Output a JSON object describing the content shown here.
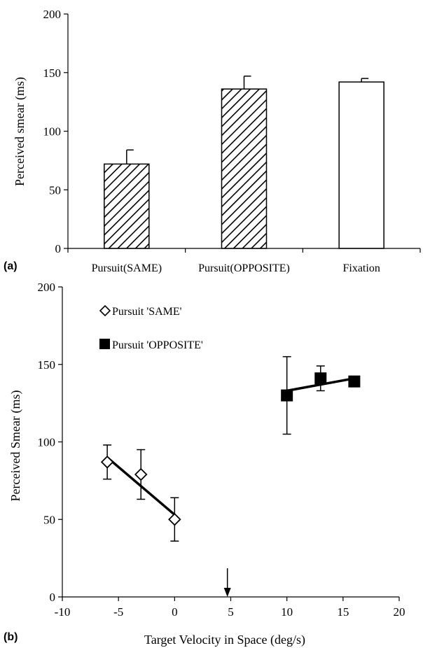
{
  "chart_data": [
    {
      "type": "bar",
      "panel_label": "(a)",
      "ylabel": "Perceived smear (ms)",
      "categories": [
        "Pursuit(SAME)",
        "Pursuit(OPPOSITE)",
        "Fixation"
      ],
      "values": [
        72,
        136,
        142
      ],
      "errors": [
        12,
        11,
        3
      ],
      "patterns": [
        "hatched",
        "hatched",
        "open"
      ],
      "ylim": [
        0,
        200
      ],
      "yticks": [
        "0",
        "50",
        "100",
        "150",
        "200"
      ]
    },
    {
      "type": "scatter",
      "panel_label": "(b)",
      "xlabel": "Target Velocity in Space (deg/s)",
      "ylabel": "Perceived Smear (ms)",
      "xlim": [
        -10,
        20
      ],
      "ylim": [
        0,
        200
      ],
      "xticks": [
        "-10",
        "-5",
        "0",
        "5",
        "10",
        "15",
        "20"
      ],
      "yticks": [
        "0",
        "50",
        "100",
        "150",
        "200"
      ],
      "legend_position": "top-left",
      "series": [
        {
          "name": "Pursuit 'SAME'",
          "marker": "open-diamond",
          "x": [
            -6,
            -3,
            0
          ],
          "y": [
            87,
            79,
            50
          ],
          "err": [
            11,
            16,
            14
          ],
          "fit": {
            "x": [
              -6,
              0
            ],
            "y": [
              90,
              53
            ]
          }
        },
        {
          "name": "Pursuit 'OPPOSITE'",
          "marker": "filled-square",
          "x": [
            10,
            13,
            16
          ],
          "y": [
            130,
            141,
            139
          ],
          "err": [
            25,
            8,
            3
          ],
          "fit": {
            "x": [
              10,
              16
            ],
            "y": [
              133,
              141
            ]
          }
        }
      ],
      "arrow_x": 4.7
    }
  ]
}
